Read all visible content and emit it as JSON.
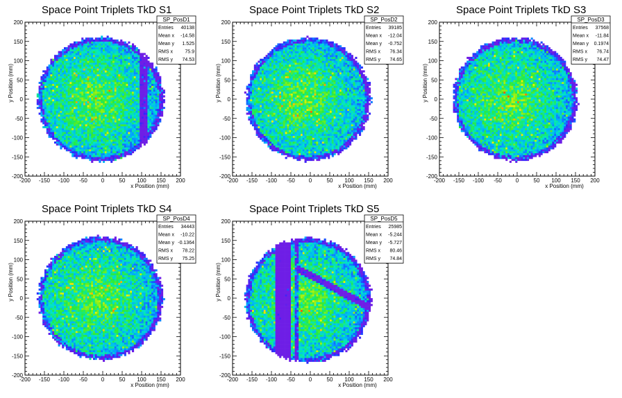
{
  "chart_data": [
    {
      "type": "heatmap",
      "title": "Space Point Triplets TkD S1",
      "xlabel": "x Position (mm)",
      "ylabel": "y Position (mm)",
      "xlim": [
        -200,
        200
      ],
      "ylim": [
        -200,
        200
      ],
      "xticks": [
        "-200",
        "-150",
        "-100",
        "-50",
        "0",
        "50",
        "100",
        "150",
        "200"
      ],
      "yticks": [
        "-200",
        "-150",
        "-100",
        "-50",
        "0",
        "50",
        "100",
        "150",
        "200"
      ],
      "stats": {
        "name": "SP_PosD1",
        "rows": [
          {
            "label": "Entries",
            "value": "40138"
          },
          {
            "label": "Mean x",
            "value": "-14.58"
          },
          {
            "label": "Mean y",
            "value": "1.525"
          },
          {
            "label": "RMS x",
            "value": "75.9"
          },
          {
            "label": "RMS y",
            "value": "74.53"
          }
        ]
      },
      "circle": {
        "cx": -5,
        "cy": 0,
        "r": 162
      },
      "bands": [
        {
          "axis": "x",
          "center": 105,
          "width": 10,
          "depth": 0.5
        }
      ]
    },
    {
      "type": "heatmap",
      "title": "Space Point Triplets TkD S2",
      "xlabel": "x Position (mm)",
      "ylabel": "y Position (mm)",
      "xlim": [
        -200,
        200
      ],
      "ylim": [
        -200,
        200
      ],
      "xticks": [
        "-200",
        "-150",
        "-100",
        "-50",
        "0",
        "50",
        "100",
        "150",
        "200"
      ],
      "yticks": [
        "-200",
        "-150",
        "-100",
        "-50",
        "0",
        "50",
        "100",
        "150",
        "200"
      ],
      "stats": {
        "name": "SP_PosD2",
        "rows": [
          {
            "label": "Entries",
            "value": "39185"
          },
          {
            "label": "Mean x",
            "value": "-12.04"
          },
          {
            "label": "Mean y",
            "value": "-0.752"
          },
          {
            "label": "RMS x",
            "value": "76.34"
          },
          {
            "label": "RMS y",
            "value": "74.65"
          }
        ]
      },
      "circle": {
        "cx": -5,
        "cy": 0,
        "r": 160
      },
      "bands": []
    },
    {
      "type": "heatmap",
      "title": "Space Point Triplets TkD S3",
      "xlabel": "x Position (mm)",
      "ylabel": "y Position (mm)",
      "xlim": [
        -200,
        200
      ],
      "ylim": [
        -200,
        200
      ],
      "xticks": [
        "-200",
        "-150",
        "-100",
        "-50",
        "0",
        "50",
        "100",
        "150",
        "200"
      ],
      "yticks": [
        "-200",
        "-150",
        "-100",
        "-50",
        "0",
        "50",
        "100",
        "150",
        "200"
      ],
      "stats": {
        "name": "SP_PosD3",
        "rows": [
          {
            "label": "Entries",
            "value": "37568"
          },
          {
            "label": "Mean x",
            "value": "-11.84"
          },
          {
            "label": "Mean y",
            "value": "0.1974"
          },
          {
            "label": "RMS x",
            "value": "76.74"
          },
          {
            "label": "RMS y",
            "value": "74.47"
          }
        ]
      },
      "circle": {
        "cx": -5,
        "cy": 0,
        "r": 160
      },
      "bands": []
    },
    {
      "type": "heatmap",
      "title": "Space Point Triplets TkD S4",
      "xlabel": "x Position (mm)",
      "ylabel": "y Position (mm)",
      "xlim": [
        -200,
        200
      ],
      "ylim": [
        -200,
        200
      ],
      "xticks": [
        "-200",
        "-150",
        "-100",
        "-50",
        "0",
        "50",
        "100",
        "150",
        "200"
      ],
      "yticks": [
        "-200",
        "-150",
        "-100",
        "-50",
        "0",
        "50",
        "100",
        "150",
        "200"
      ],
      "stats": {
        "name": "SP_PosD4",
        "rows": [
          {
            "label": "Entries",
            "value": "34443"
          },
          {
            "label": "Mean x",
            "value": "-10.22"
          },
          {
            "label": "Mean y",
            "value": "-0.1364"
          },
          {
            "label": "RMS x",
            "value": "78.22"
          },
          {
            "label": "RMS y",
            "value": "75.25"
          }
        ]
      },
      "circle": {
        "cx": -5,
        "cy": 0,
        "r": 160
      },
      "bands": []
    },
    {
      "type": "heatmap",
      "title": "Space Point Triplets TkD S5",
      "xlabel": "x Position (mm)",
      "ylabel": "y Position (mm)",
      "xlim": [
        -200,
        200
      ],
      "ylim": [
        -200,
        200
      ],
      "xticks": [
        "-200",
        "-150",
        "-100",
        "-50",
        "0",
        "50",
        "100",
        "150",
        "200"
      ],
      "yticks": [
        "-200",
        "-150",
        "-100",
        "-50",
        "0",
        "50",
        "100",
        "150",
        "200"
      ],
      "stats": {
        "name": "SP_PosD5",
        "rows": [
          {
            "label": "Entries",
            "value": "25985"
          },
          {
            "label": "Mean x",
            "value": "-5.244"
          },
          {
            "label": "Mean y",
            "value": "-5.727"
          },
          {
            "label": "RMS x",
            "value": "80.46"
          },
          {
            "label": "RMS y",
            "value": "74.84"
          }
        ]
      },
      "circle": {
        "cx": -5,
        "cy": -5,
        "r": 162
      },
      "bands": [
        {
          "axis": "x",
          "center": -80,
          "width": 8,
          "depth": 0.85
        },
        {
          "axis": "x",
          "center": -60,
          "width": 8,
          "depth": 0.85
        },
        {
          "axis": "x",
          "center": -35,
          "width": 6,
          "depth": 0.4
        },
        {
          "axis": "diag",
          "center": 60,
          "width": 10,
          "depth": 0.6
        }
      ]
    }
  ]
}
